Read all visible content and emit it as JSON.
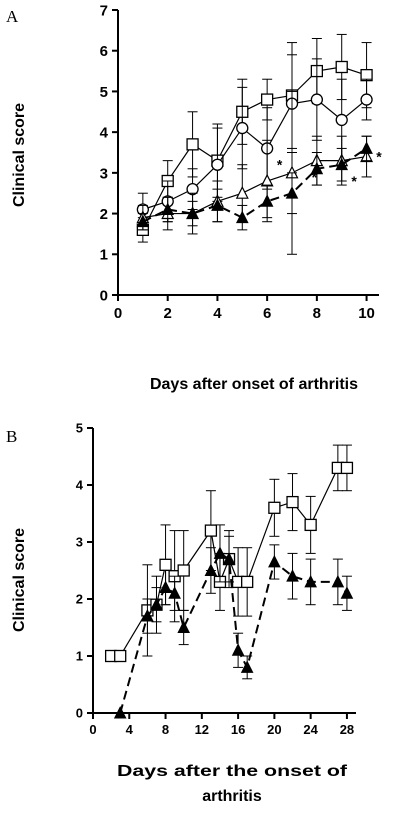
{
  "colors": {
    "ink": "#000000",
    "background": "#ffffff",
    "open_marker": "#ffffff",
    "filled_marker": "#000000"
  },
  "chart_data": [
    {
      "panel": "A",
      "type": "line",
      "xlabel": "Days after onset of arthritis",
      "ylabel": "Clinical score",
      "xlim": [
        0,
        10.5
      ],
      "ylim": [
        0,
        7
      ],
      "xticks": [
        0,
        2,
        4,
        6,
        8,
        10
      ],
      "yticks": [
        0,
        1,
        2,
        3,
        4,
        5,
        6,
        7
      ],
      "grid": false,
      "legend": "none",
      "series": [
        {
          "marker": "open-square",
          "line": "solid",
          "x": [
            1,
            2,
            3,
            4,
            5,
            6,
            7,
            8,
            9,
            10
          ],
          "y": [
            1.6,
            2.8,
            3.7,
            3.3,
            4.5,
            4.8,
            4.9,
            5.5,
            5.6,
            5.4
          ],
          "err": [
            0.3,
            0.5,
            0.8,
            0.9,
            0.8,
            0.5,
            1.3,
            0.8,
            0.8,
            0.8
          ]
        },
        {
          "marker": "open-circle",
          "line": "solid",
          "x": [
            1,
            2,
            3,
            4,
            5,
            6,
            7,
            8,
            9,
            10
          ],
          "y": [
            2.1,
            2.3,
            2.6,
            3.2,
            4.1,
            3.6,
            4.7,
            4.8,
            4.3,
            4.8
          ],
          "err": [
            0.4,
            0.5,
            0.5,
            0.9,
            1.0,
            1.0,
            1.2,
            1.0,
            1.0,
            0.5
          ]
        },
        {
          "marker": "open-triangle",
          "line": "solid",
          "x": [
            1,
            2,
            3,
            4,
            5,
            6,
            7,
            8,
            9,
            10
          ],
          "y": [
            1.9,
            2.0,
            2.0,
            2.3,
            2.5,
            2.8,
            3.0,
            3.3,
            3.3,
            3.4
          ],
          "err": [
            0.3,
            0.4,
            0.5,
            0.5,
            0.7,
            1.0,
            2.0,
            0.6,
            0.6,
            0.5
          ]
        },
        {
          "marker": "filled-triangle",
          "line": "dashed",
          "x": [
            1,
            2,
            3,
            4,
            5,
            6,
            7,
            8,
            9,
            10
          ],
          "y": [
            1.8,
            2.1,
            2.0,
            2.2,
            1.9,
            2.3,
            2.5,
            3.1,
            3.2,
            3.6
          ],
          "err": [
            0.2,
            0.3,
            0.3,
            0.4,
            0.3,
            0.4,
            0.5,
            0.4,
            0.4,
            0.3
          ]
        }
      ],
      "annotations": [
        {
          "text": "*",
          "x": 6.5,
          "y": 3.2
        },
        {
          "text": "*",
          "x": 7.9,
          "y": 2.9
        },
        {
          "text": "*",
          "x": 9.5,
          "y": 2.8
        },
        {
          "text": "*",
          "x": 10.5,
          "y": 3.4
        }
      ]
    },
    {
      "panel": "B",
      "type": "line",
      "xlabel": "Days after the onset of arthritis",
      "ylabel": "Clinical score",
      "xlim": [
        0,
        29
      ],
      "ylim": [
        0,
        5
      ],
      "xticks": [
        0,
        4,
        8,
        12,
        16,
        20,
        24,
        28
      ],
      "yticks": [
        0,
        1,
        2,
        3,
        4,
        5
      ],
      "grid": false,
      "legend": "none",
      "series": [
        {
          "marker": "open-square",
          "line": "solid",
          "x": [
            2,
            3,
            6,
            7,
            8,
            9,
            10,
            13,
            14,
            15,
            16,
            17,
            20,
            22,
            24,
            27,
            28
          ],
          "y": [
            1.0,
            1.0,
            1.8,
            1.9,
            2.6,
            2.4,
            2.5,
            3.2,
            2.3,
            2.7,
            2.3,
            2.3,
            3.6,
            3.7,
            3.3,
            4.3,
            4.3
          ],
          "err": [
            0.0,
            0.0,
            0.8,
            0.5,
            0.7,
            0.8,
            0.7,
            0.7,
            0.5,
            0.5,
            0.6,
            0.6,
            0.5,
            0.5,
            0.5,
            0.4,
            0.4
          ]
        },
        {
          "marker": "filled-triangle",
          "line": "dashed",
          "x": [
            3,
            6,
            7,
            8,
            9,
            10,
            13,
            14,
            15,
            16,
            17,
            20,
            22,
            24,
            27,
            28
          ],
          "y": [
            0.0,
            1.7,
            1.9,
            2.2,
            2.1,
            1.5,
            2.5,
            2.8,
            2.7,
            1.1,
            0.8,
            2.65,
            2.4,
            2.3,
            2.3,
            2.1
          ],
          "err": [
            0.0,
            0.3,
            0.3,
            0.3,
            0.3,
            0.3,
            0.4,
            0.5,
            0.4,
            0.3,
            0.2,
            0.3,
            0.4,
            0.4,
            0.4,
            0.3
          ]
        }
      ]
    }
  ]
}
